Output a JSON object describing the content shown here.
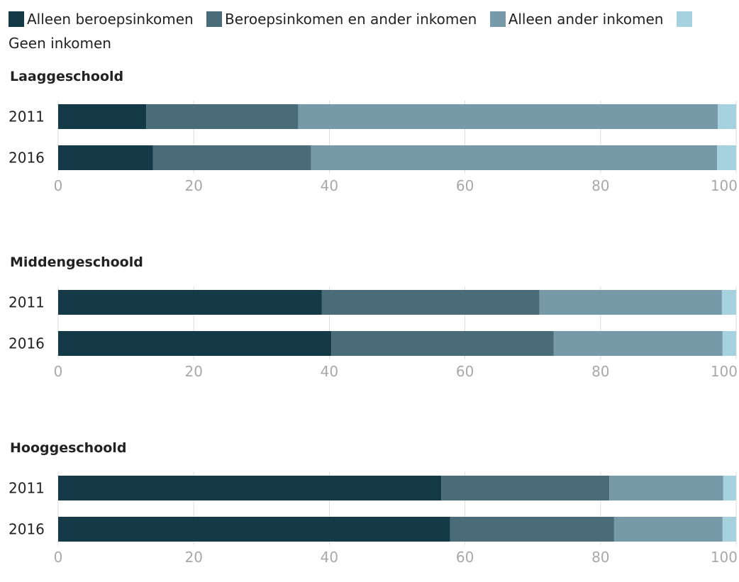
{
  "chart_data": {
    "type": "bar",
    "orientation": "horizontal",
    "stacked": true,
    "legend": {
      "placement": "top",
      "entries": [
        {
          "name": "Alleen beroepsinkomen",
          "color": "#143a48"
        },
        {
          "name": "Beroepsinkomen en ander inkomen",
          "color": "#4a6b78"
        },
        {
          "name": "Alleen ander inkomen",
          "color": "#769aa8"
        },
        {
          "name": "Geen inkomen",
          "color": "#a6d2e0"
        }
      ]
    },
    "xlim": [
      0,
      100
    ],
    "xticks": [
      "0",
      "20",
      "40",
      "60",
      "80",
      "100"
    ],
    "grid": true,
    "panels": [
      {
        "title": "Laaggeschoold",
        "rows": [
          {
            "label": "2011",
            "values": [
              13,
              22.4,
              61.9,
              2.7
            ]
          },
          {
            "label": "2016",
            "values": [
              14,
              23.3,
              59.9,
              2.8
            ]
          }
        ]
      },
      {
        "title": "Middengeschoold",
        "rows": [
          {
            "label": "2011",
            "values": [
              38.9,
              32.1,
              26.9,
              2.1
            ]
          },
          {
            "label": "2016",
            "values": [
              40.3,
              32.8,
              24.9,
              2.0
            ]
          }
        ]
      },
      {
        "title": "Hooggeschoold",
        "rows": [
          {
            "label": "2011",
            "values": [
              56.5,
              24.8,
              16.8,
              1.9
            ]
          },
          {
            "label": "2016",
            "values": [
              57.8,
              24.2,
              16.0,
              2.0
            ]
          }
        ]
      }
    ]
  }
}
